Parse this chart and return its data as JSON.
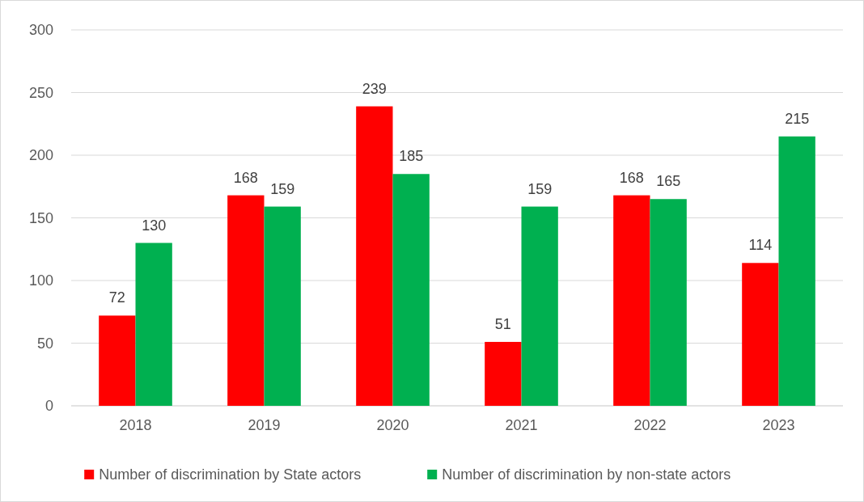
{
  "chart_data": {
    "type": "bar",
    "categories": [
      "2018",
      "2019",
      "2020",
      "2021",
      "2022",
      "2023"
    ],
    "series": [
      {
        "name": "Number of discrimination by State actors",
        "color": "#ff0000",
        "values": [
          72,
          168,
          239,
          51,
          168,
          114
        ]
      },
      {
        "name": "Number of discrimination by non-state actors",
        "color": "#00b050",
        "values": [
          130,
          159,
          185,
          159,
          165,
          215
        ]
      }
    ],
    "ylim": [
      0,
      300
    ],
    "yticks": [
      0,
      50,
      100,
      150,
      200,
      250,
      300
    ],
    "grid": "y",
    "legend": "bottom",
    "data_labels": true
  }
}
